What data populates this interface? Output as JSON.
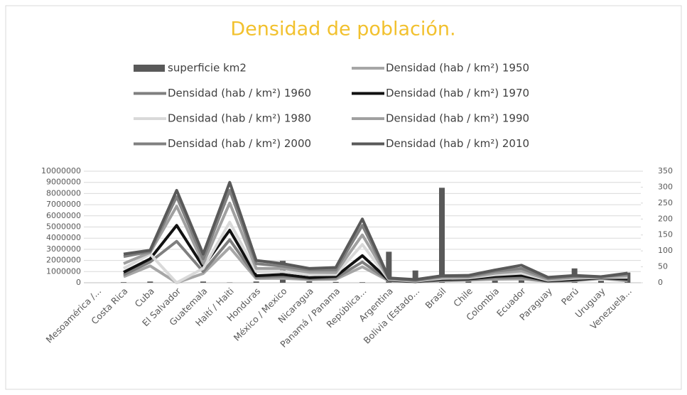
{
  "chart_data": {
    "type": "bar-line",
    "title": "Densidad de población.",
    "categories": [
      "Mesoamérica /...",
      "Costa Rica",
      "Cuba",
      "El Salvador",
      "Guatemala",
      "Haití / Haiti",
      "Honduras",
      "México / Mexico",
      "Nicaragua",
      "Panamá / Panama",
      "República...",
      "Argentina",
      "Bolivia (Estado...",
      "Brasil",
      "Chile",
      "Colombia",
      "Ecuador",
      "Paraguay",
      "Perú",
      "Uruguay",
      "Venezuela..."
    ],
    "series": [
      {
        "name": "superficie km2",
        "type": "bar",
        "color": "#595959",
        "values": [
          null,
          51100,
          109884,
          21041,
          108889,
          27750,
          112492,
          1964375,
          130373,
          75417,
          48670,
          2780400,
          1098581,
          8515767,
          756102,
          1141748,
          283561,
          406752,
          1285216,
          176215,
          916445
        ]
      },
      {
        "name": "Densidad (hab / km²) 1950",
        "type": "line",
        "axis": "y2",
        "color": "#a6a6a6",
        "values": [
          null,
          19,
          53,
          0,
          29,
          111,
          13,
          14,
          10,
          11,
          50,
          6,
          3,
          6,
          8,
          11,
          12,
          4,
          6,
          13,
          6
        ]
      },
      {
        "name": "Densidad (hab / km²) 1960",
        "type": "line",
        "axis": "y2",
        "color": "#7f7f7f",
        "values": [
          null,
          25,
          65,
          130,
          35,
          135,
          17,
          20,
          12,
          15,
          65,
          7,
          3,
          8,
          10,
          15,
          17,
          5,
          8,
          15,
          9
        ]
      },
      {
        "name": "Densidad (hab / km²) 1970",
        "type": "line",
        "axis": "y2",
        "color": "#111111",
        "values": [
          null,
          33,
          75,
          180,
          50,
          165,
          22,
          26,
          16,
          20,
          85,
          8,
          4,
          11,
          12,
          20,
          23,
          6,
          10,
          16,
          12
        ]
      },
      {
        "name": "Densidad (hab / km²) 1980",
        "type": "line",
        "axis": "y2",
        "color": "#d9d9d9",
        "values": [
          null,
          45,
          90,
          0,
          45,
          190,
          35,
          35,
          25,
          26,
          120,
          10,
          5,
          14,
          15,
          25,
          30,
          8,
          14,
          17,
          17
        ]
      },
      {
        "name": "Densidad (hab / km²) 1990",
        "type": "line",
        "axis": "y2",
        "color": "#a0a0a0",
        "values": [
          null,
          60,
          95,
          240,
          60,
          250,
          45,
          45,
          33,
          32,
          150,
          12,
          6,
          17,
          17,
          30,
          37,
          10,
          17,
          18,
          22
        ]
      },
      {
        "name": "Densidad (hab / km²) 2000",
        "type": "line",
        "axis": "y2",
        "color": "#808080",
        "values": [
          null,
          82,
          98,
          270,
          75,
          290,
          60,
          52,
          40,
          40,
          180,
          13,
          8,
          20,
          20,
          36,
          45,
          14,
          20,
          19,
          27
        ]
      },
      {
        "name": "Densidad (hab / km²) 2010",
        "type": "line",
        "axis": "y2",
        "color": "#595959",
        "values": [
          null,
          90,
          102,
          290,
          90,
          315,
          70,
          60,
          45,
          48,
          200,
          15,
          10,
          22,
          23,
          40,
          55,
          17,
          23,
          19,
          30
        ]
      }
    ],
    "ylim": [
      0,
      10000000
    ],
    "yticks": [
      0,
      1000000,
      2000000,
      3000000,
      4000000,
      5000000,
      6000000,
      7000000,
      8000000,
      9000000,
      10000000
    ],
    "y2lim": [
      0,
      350
    ],
    "y2ticks": [
      0,
      50,
      100,
      150,
      200,
      250,
      300,
      350
    ],
    "grid": true,
    "legend": "top"
  }
}
